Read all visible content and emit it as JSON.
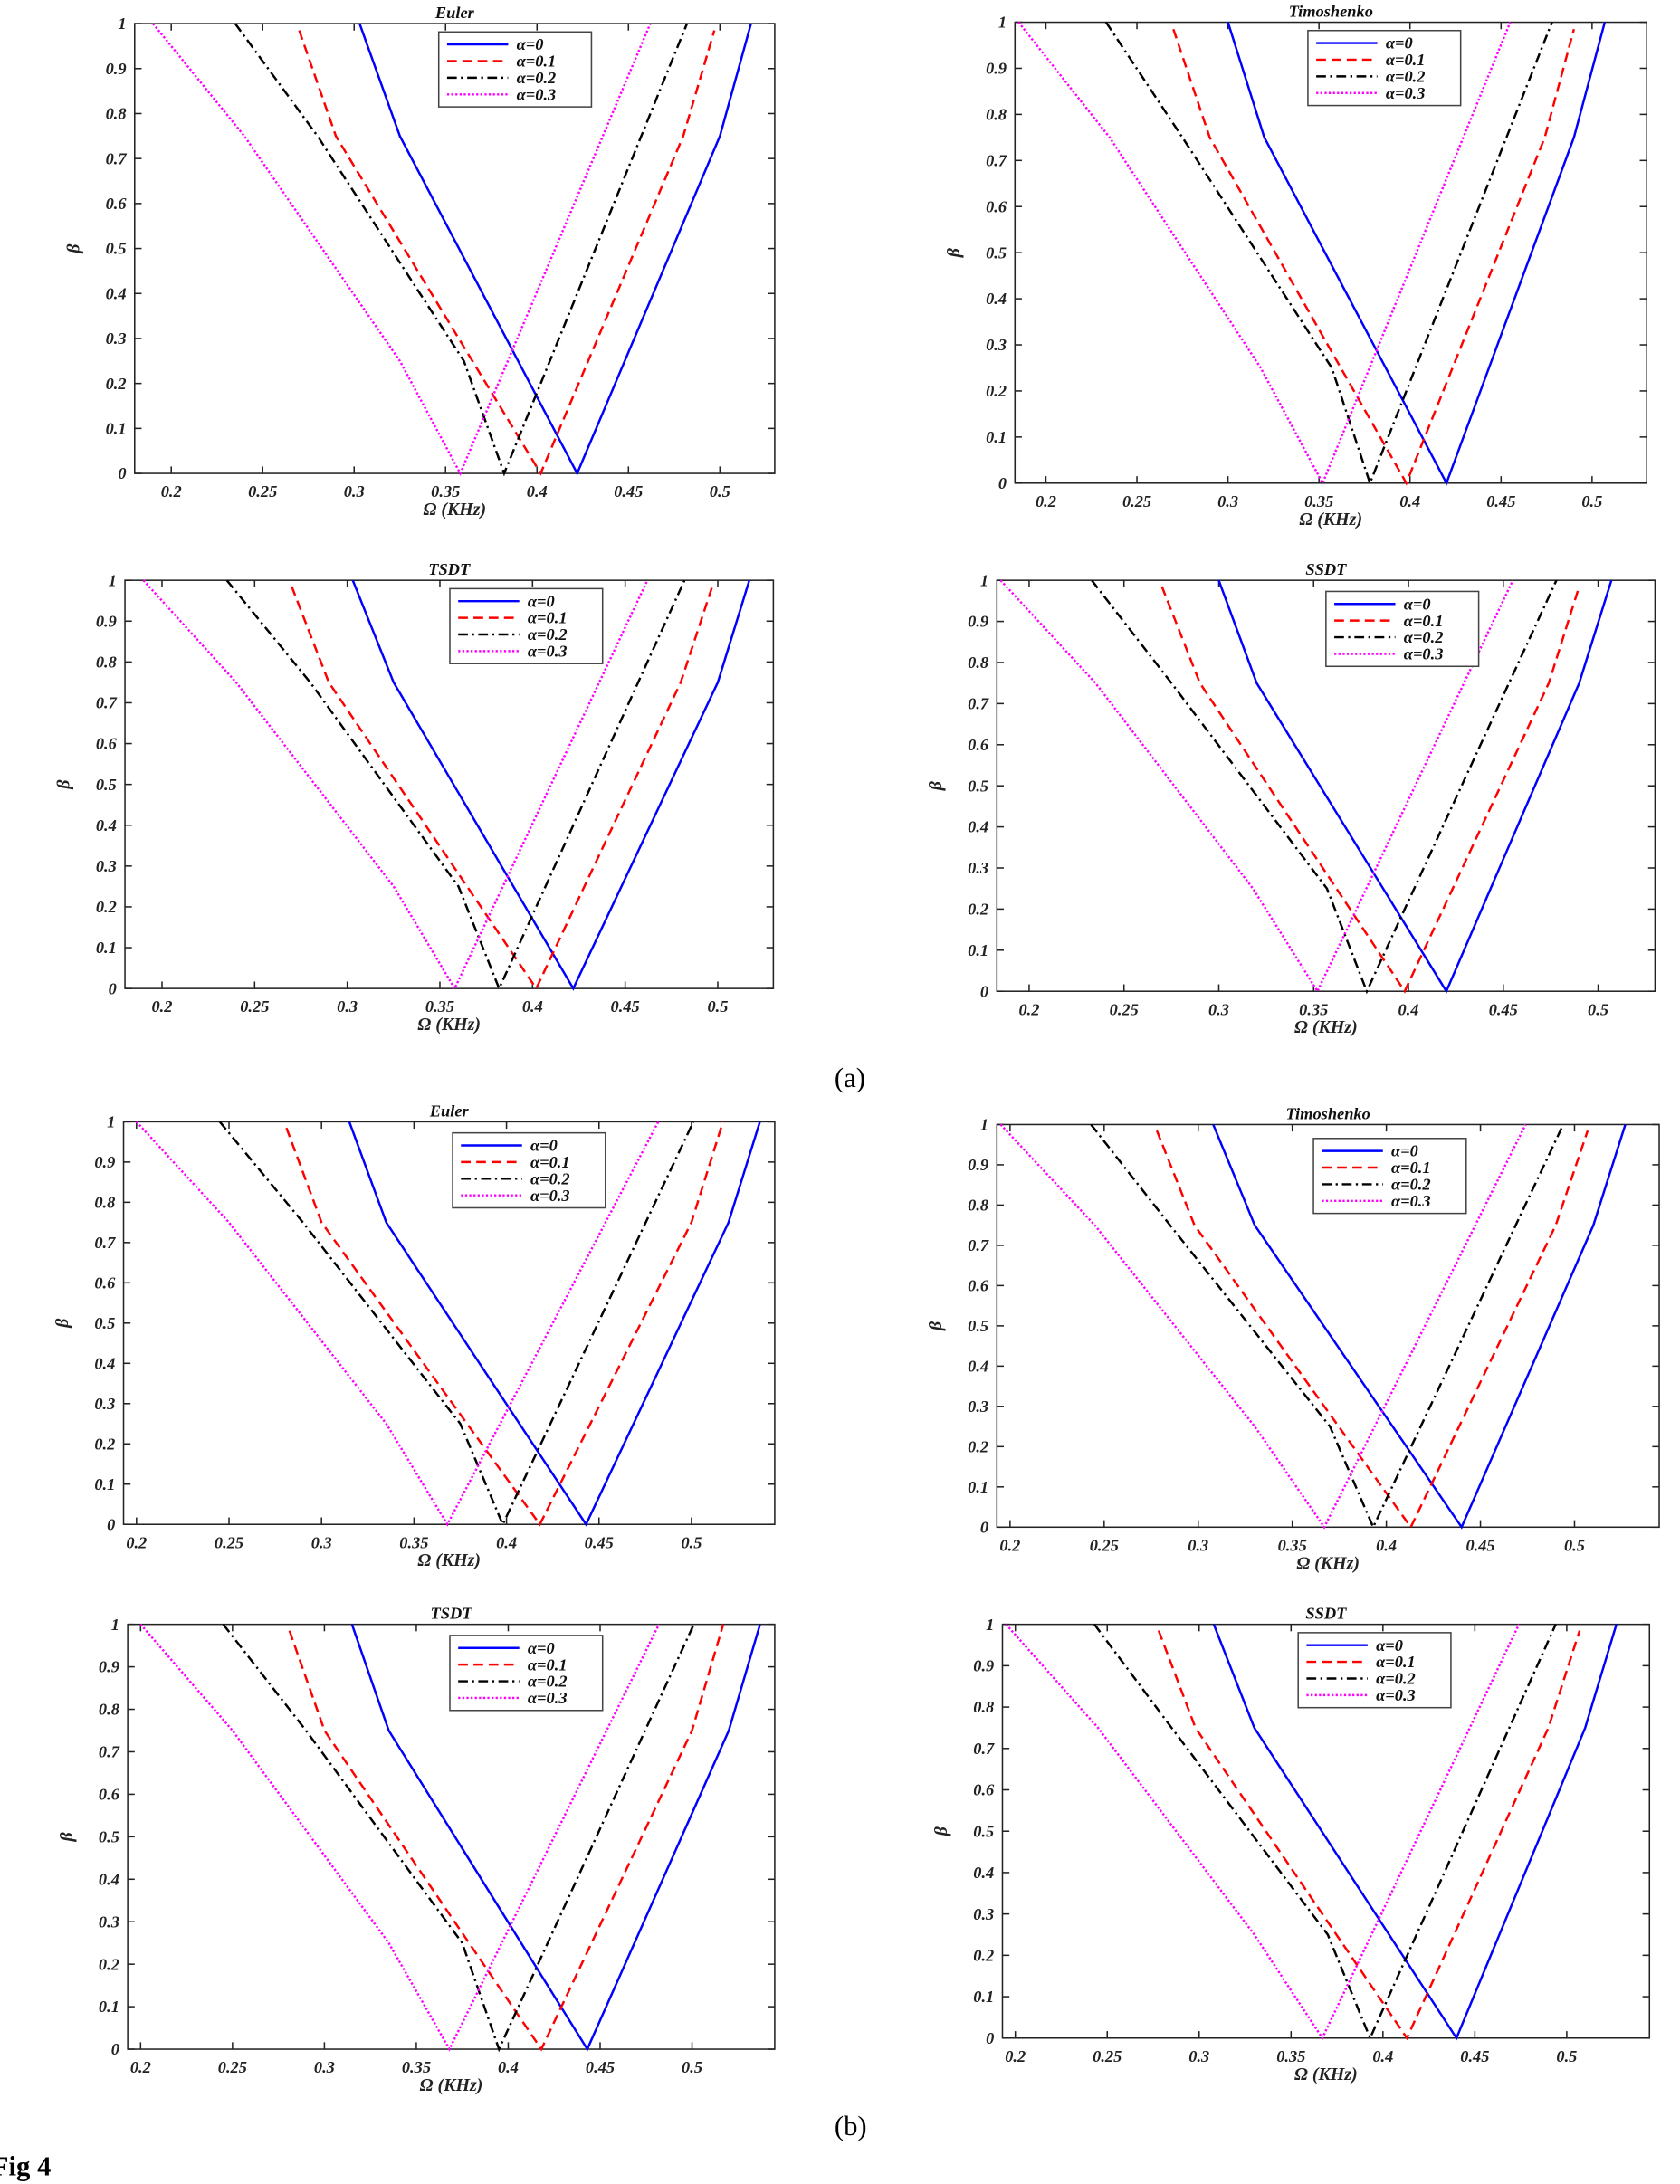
{
  "captions": {
    "a": "(a)",
    "b": "(b)",
    "figure": "Fig 4"
  },
  "chart_data": [
    {
      "type": "line",
      "group": "(a)",
      "title": "Euler",
      "xlabel": "Ω (KHz)",
      "ylabel": "β",
      "xlim": [
        0.18,
        0.53
      ],
      "ylim": [
        0,
        1
      ],
      "legend": "top-right",
      "xticks": [
        "0.2",
        "0.25",
        "0.3",
        "0.35",
        "0.4",
        "0.45",
        "0.5"
      ],
      "yticks": [
        "0",
        "0.1",
        "0.2",
        "0.3",
        "0.4",
        "0.5",
        "0.6",
        "0.7",
        "0.8",
        "0.9",
        "1"
      ],
      "series": [
        {
          "name": "α=0",
          "color": "#0000ff",
          "points": [
            [
              0.303,
              1
            ],
            [
              0.325,
              0.75
            ],
            [
              0.422,
              0
            ],
            [
              0.5,
              0.75
            ],
            [
              0.517,
              1
            ]
          ]
        },
        {
          "name": "α=0.1",
          "color": "#ff0000",
          "points": [
            [
              0.27,
              0.985
            ],
            [
              0.29,
              0.75
            ],
            [
              0.402,
              0
            ],
            [
              0.48,
              0.75
            ],
            [
              0.497,
              0.985
            ]
          ]
        },
        {
          "name": "α=0.2",
          "color": "#000000",
          "points": [
            [
              0.235,
              1
            ],
            [
              0.28,
              0.75
            ],
            [
              0.36,
              0.25
            ],
            [
              0.382,
              0
            ],
            [
              0.482,
              1
            ]
          ]
        },
        {
          "name": "α=0.3",
          "color": "#ff00ff",
          "points": [
            [
              0.19,
              1
            ],
            [
              0.24,
              0.75
            ],
            [
              0.325,
              0.25
            ],
            [
              0.358,
              0
            ],
            [
              0.462,
              1
            ]
          ]
        }
      ]
    },
    {
      "type": "line",
      "group": "(a)",
      "title": "Timoshenko",
      "xlabel": "Ω (KHz)",
      "ylabel": "β",
      "xlim": [
        0.183,
        0.53
      ],
      "ylim": [
        0,
        1
      ],
      "legend": "top-right",
      "xticks": [
        "0.2",
        "0.25",
        "0.3",
        "0.35",
        "0.4",
        "0.45",
        "0.5"
      ],
      "yticks": [
        "0",
        "0.1",
        "0.2",
        "0.3",
        "0.4",
        "0.5",
        "0.6",
        "0.7",
        "0.8",
        "0.9",
        "1"
      ],
      "series": [
        {
          "name": "α=0",
          "color": "#0000ff",
          "points": [
            [
              0.3,
              1
            ],
            [
              0.32,
              0.75
            ],
            [
              0.42,
              0
            ],
            [
              0.49,
              0.75
            ],
            [
              0.507,
              1
            ]
          ]
        },
        {
          "name": "α=0.1",
          "color": "#ff0000",
          "points": [
            [
              0.27,
              0.985
            ],
            [
              0.29,
              0.75
            ],
            [
              0.398,
              0
            ],
            [
              0.474,
              0.75
            ],
            [
              0.49,
              0.985
            ]
          ]
        },
        {
          "name": "α=0.2",
          "color": "#000000",
          "points": [
            [
              0.233,
              1
            ],
            [
              0.275,
              0.75
            ],
            [
              0.357,
              0.25
            ],
            [
              0.378,
              0
            ],
            [
              0.478,
              1
            ]
          ]
        },
        {
          "name": "α=0.3",
          "color": "#ff00ff",
          "points": [
            [
              0.185,
              1
            ],
            [
              0.235,
              0.75
            ],
            [
              0.318,
              0.25
            ],
            [
              0.352,
              0
            ],
            [
              0.455,
              1
            ]
          ]
        }
      ]
    },
    {
      "type": "line",
      "group": "(a)",
      "title": "TSDT",
      "xlabel": "Ω (KHz)",
      "ylabel": "β",
      "xlim": [
        0.18,
        0.53
      ],
      "ylim": [
        0,
        1
      ],
      "legend": "top-right",
      "xticks": [
        "0.2",
        "0.25",
        "0.3",
        "0.35",
        "0.4",
        "0.45",
        "0.5"
      ],
      "yticks": [
        "0",
        "0.1",
        "0.2",
        "0.3",
        "0.4",
        "0.5",
        "0.6",
        "0.7",
        "0.8",
        "0.9",
        "1"
      ],
      "series": [
        {
          "name": "α=0",
          "color": "#0000ff",
          "points": [
            [
              0.303,
              1
            ],
            [
              0.325,
              0.75
            ],
            [
              0.422,
              0
            ],
            [
              0.5,
              0.75
            ],
            [
              0.517,
              1
            ]
          ]
        },
        {
          "name": "α=0.1",
          "color": "#ff0000",
          "points": [
            [
              0.27,
              0.985
            ],
            [
              0.29,
              0.75
            ],
            [
              0.402,
              0
            ],
            [
              0.48,
              0.75
            ],
            [
              0.497,
              0.985
            ]
          ]
        },
        {
          "name": "α=0.2",
          "color": "#000000",
          "points": [
            [
              0.235,
              1
            ],
            [
              0.28,
              0.75
            ],
            [
              0.36,
              0.25
            ],
            [
              0.382,
              0
            ],
            [
              0.482,
              1
            ]
          ]
        },
        {
          "name": "α=0.3",
          "color": "#ff00ff",
          "points": [
            [
              0.19,
              1
            ],
            [
              0.24,
              0.75
            ],
            [
              0.325,
              0.25
            ],
            [
              0.358,
              0
            ],
            [
              0.462,
              1
            ]
          ]
        }
      ]
    },
    {
      "type": "line",
      "group": "(a)",
      "title": "SSDT",
      "xlabel": "Ω (KHz)",
      "ylabel": "β",
      "xlim": [
        0.183,
        0.53
      ],
      "ylim": [
        0,
        1
      ],
      "legend": "top-right",
      "xticks": [
        "0.2",
        "0.25",
        "0.3",
        "0.35",
        "0.4",
        "0.45",
        "0.5"
      ],
      "yticks": [
        "0",
        "0.1",
        "0.2",
        "0.3",
        "0.4",
        "0.5",
        "0.6",
        "0.7",
        "0.8",
        "0.9",
        "1"
      ],
      "series": [
        {
          "name": "α=0",
          "color": "#0000ff",
          "points": [
            [
              0.3,
              1
            ],
            [
              0.32,
              0.75
            ],
            [
              0.42,
              0
            ],
            [
              0.49,
              0.75
            ],
            [
              0.507,
              1
            ]
          ]
        },
        {
          "name": "α=0.1",
          "color": "#ff0000",
          "points": [
            [
              0.27,
              0.985
            ],
            [
              0.29,
              0.75
            ],
            [
              0.398,
              0
            ],
            [
              0.474,
              0.75
            ],
            [
              0.49,
              0.985
            ]
          ]
        },
        {
          "name": "α=0.2",
          "color": "#000000",
          "points": [
            [
              0.233,
              1
            ],
            [
              0.275,
              0.75
            ],
            [
              0.357,
              0.25
            ],
            [
              0.378,
              0
            ],
            [
              0.478,
              1
            ]
          ]
        },
        {
          "name": "α=0.3",
          "color": "#ff00ff",
          "points": [
            [
              0.185,
              1
            ],
            [
              0.235,
              0.75
            ],
            [
              0.318,
              0.25
            ],
            [
              0.352,
              0
            ],
            [
              0.455,
              1
            ]
          ]
        }
      ]
    },
    {
      "type": "line",
      "group": "(b)",
      "title": "Euler",
      "xlabel": "Ω (KHz)",
      "ylabel": "β",
      "xlim": [
        0.193,
        0.545
      ],
      "ylim": [
        0,
        1
      ],
      "legend": "top-right",
      "xticks": [
        "0.2",
        "0.25",
        "0.3",
        "0.35",
        "0.4",
        "0.45",
        "0.5"
      ],
      "yticks": [
        "0",
        "0.1",
        "0.2",
        "0.3",
        "0.4",
        "0.5",
        "0.6",
        "0.7",
        "0.8",
        "0.9",
        "1"
      ],
      "series": [
        {
          "name": "α=0",
          "color": "#0000ff",
          "points": [
            [
              0.315,
              1
            ],
            [
              0.335,
              0.75
            ],
            [
              0.443,
              0
            ],
            [
              0.52,
              0.75
            ],
            [
              0.537,
              1
            ]
          ]
        },
        {
          "name": "α=0.1",
          "color": "#ff0000",
          "points": [
            [
              0.281,
              0.985
            ],
            [
              0.3,
              0.75
            ],
            [
              0.418,
              0
            ],
            [
              0.5,
              0.75
            ],
            [
              0.517,
              1
            ]
          ]
        },
        {
          "name": "α=0.2",
          "color": "#000000",
          "points": [
            [
              0.245,
              1
            ],
            [
              0.29,
              0.75
            ],
            [
              0.375,
              0.25
            ],
            [
              0.398,
              0
            ],
            [
              0.501,
              1
            ]
          ]
        },
        {
          "name": "α=0.3",
          "color": "#ff00ff",
          "points": [
            [
              0.2,
              1
            ],
            [
              0.25,
              0.75
            ],
            [
              0.335,
              0.25
            ],
            [
              0.368,
              0
            ],
            [
              0.482,
              1
            ]
          ]
        }
      ]
    },
    {
      "type": "line",
      "group": "(b)",
      "title": "Timoshenko",
      "xlabel": "Ω (KHz)",
      "ylabel": "β",
      "xlim": [
        0.193,
        0.545
      ],
      "ylim": [
        0,
        1
      ],
      "legend": "top-right",
      "xticks": [
        "0.2",
        "0.25",
        "0.3",
        "0.35",
        "0.4",
        "0.45",
        "0.5"
      ],
      "yticks": [
        "0",
        "0.1",
        "0.2",
        "0.3",
        "0.4",
        "0.5",
        "0.6",
        "0.7",
        "0.8",
        "0.9",
        "1"
      ],
      "series": [
        {
          "name": "α=0",
          "color": "#0000ff",
          "points": [
            [
              0.308,
              1
            ],
            [
              0.33,
              0.75
            ],
            [
              0.44,
              0
            ],
            [
              0.51,
              0.75
            ],
            [
              0.527,
              1
            ]
          ]
        },
        {
          "name": "α=0.1",
          "color": "#ff0000",
          "points": [
            [
              0.278,
              0.985
            ],
            [
              0.298,
              0.75
            ],
            [
              0.413,
              0
            ],
            [
              0.49,
              0.75
            ],
            [
              0.507,
              0.985
            ]
          ]
        },
        {
          "name": "α=0.2",
          "color": "#000000",
          "points": [
            [
              0.243,
              1
            ],
            [
              0.285,
              0.75
            ],
            [
              0.37,
              0.25
            ],
            [
              0.393,
              0
            ],
            [
              0.494,
              1
            ]
          ]
        },
        {
          "name": "α=0.3",
          "color": "#ff00ff",
          "points": [
            [
              0.195,
              1
            ],
            [
              0.245,
              0.75
            ],
            [
              0.33,
              0.25
            ],
            [
              0.367,
              0
            ],
            [
              0.474,
              1
            ]
          ]
        }
      ]
    },
    {
      "type": "line",
      "group": "(b)",
      "title": "TSDT",
      "xlabel": "Ω (KHz)",
      "ylabel": "β",
      "xlim": [
        0.193,
        0.545
      ],
      "ylim": [
        0,
        1
      ],
      "legend": "top-right",
      "xticks": [
        "0.2",
        "0.25",
        "0.3",
        "0.35",
        "0.4",
        "0.45",
        "0.5"
      ],
      "yticks": [
        "0",
        "0.1",
        "0.2",
        "0.3",
        "0.4",
        "0.5",
        "0.6",
        "0.7",
        "0.8",
        "0.9",
        "1"
      ],
      "series": [
        {
          "name": "α=0",
          "color": "#0000ff",
          "points": [
            [
              0.315,
              1
            ],
            [
              0.335,
              0.75
            ],
            [
              0.443,
              0
            ],
            [
              0.52,
              0.75
            ],
            [
              0.537,
              1
            ]
          ]
        },
        {
          "name": "α=0.1",
          "color": "#ff0000",
          "points": [
            [
              0.281,
              0.985
            ],
            [
              0.3,
              0.75
            ],
            [
              0.418,
              0
            ],
            [
              0.5,
              0.75
            ],
            [
              0.517,
              1
            ]
          ]
        },
        {
          "name": "α=0.2",
          "color": "#000000",
          "points": [
            [
              0.245,
              1
            ],
            [
              0.29,
              0.75
            ],
            [
              0.375,
              0.25
            ],
            [
              0.395,
              0
            ],
            [
              0.501,
              1
            ]
          ]
        },
        {
          "name": "α=0.3",
          "color": "#ff00ff",
          "points": [
            [
              0.2,
              1
            ],
            [
              0.25,
              0.75
            ],
            [
              0.335,
              0.25
            ],
            [
              0.368,
              0
            ],
            [
              0.482,
              1
            ]
          ]
        }
      ]
    },
    {
      "type": "line",
      "group": "(b)",
      "title": "SSDT",
      "xlabel": "Ω (KHz)",
      "ylabel": "β",
      "xlim": [
        0.193,
        0.545
      ],
      "ylim": [
        0,
        1
      ],
      "legend": "top-right",
      "xticks": [
        "0.2",
        "0.25",
        "0.3",
        "0.35",
        "0.4",
        "0.45",
        "0.5"
      ],
      "yticks": [
        "0",
        "0.1",
        "0.2",
        "0.3",
        "0.4",
        "0.5",
        "0.6",
        "0.7",
        "0.8",
        "0.9",
        "1"
      ],
      "series": [
        {
          "name": "α=0",
          "color": "#0000ff",
          "points": [
            [
              0.308,
              1
            ],
            [
              0.33,
              0.75
            ],
            [
              0.44,
              0
            ],
            [
              0.51,
              0.75
            ],
            [
              0.527,
              1
            ]
          ]
        },
        {
          "name": "α=0.1",
          "color": "#ff0000",
          "points": [
            [
              0.278,
              0.985
            ],
            [
              0.298,
              0.75
            ],
            [
              0.413,
              0
            ],
            [
              0.49,
              0.75
            ],
            [
              0.507,
              0.985
            ]
          ]
        },
        {
          "name": "α=0.2",
          "color": "#000000",
          "points": [
            [
              0.243,
              1
            ],
            [
              0.285,
              0.75
            ],
            [
              0.37,
              0.25
            ],
            [
              0.393,
              0
            ],
            [
              0.494,
              1
            ]
          ]
        },
        {
          "name": "α=0.3",
          "color": "#ff00ff",
          "points": [
            [
              0.195,
              1
            ],
            [
              0.245,
              0.75
            ],
            [
              0.33,
              0.25
            ],
            [
              0.367,
              0
            ],
            [
              0.474,
              1
            ]
          ]
        }
      ]
    }
  ]
}
